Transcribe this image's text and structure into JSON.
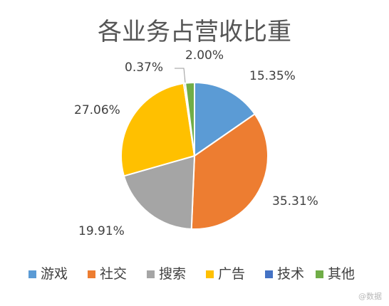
{
  "chart_data": {
    "type": "pie",
    "title": "各业务占营收比重",
    "categories": [
      "游戏",
      "社交",
      "搜索",
      "广告",
      "技术",
      "其他"
    ],
    "values": [
      15.35,
      35.31,
      19.91,
      27.06,
      0.37,
      2.0
    ],
    "value_labels": [
      "15.35%",
      "35.31%",
      "19.91%",
      "27.06%",
      "0.37%",
      "2.00%"
    ],
    "colors": [
      "#5B9BD5",
      "#ED7D31",
      "#A5A5A5",
      "#FFC000",
      "#4472C4",
      "#70AD47"
    ],
    "legend_position": "bottom"
  },
  "watermark": "@数据"
}
